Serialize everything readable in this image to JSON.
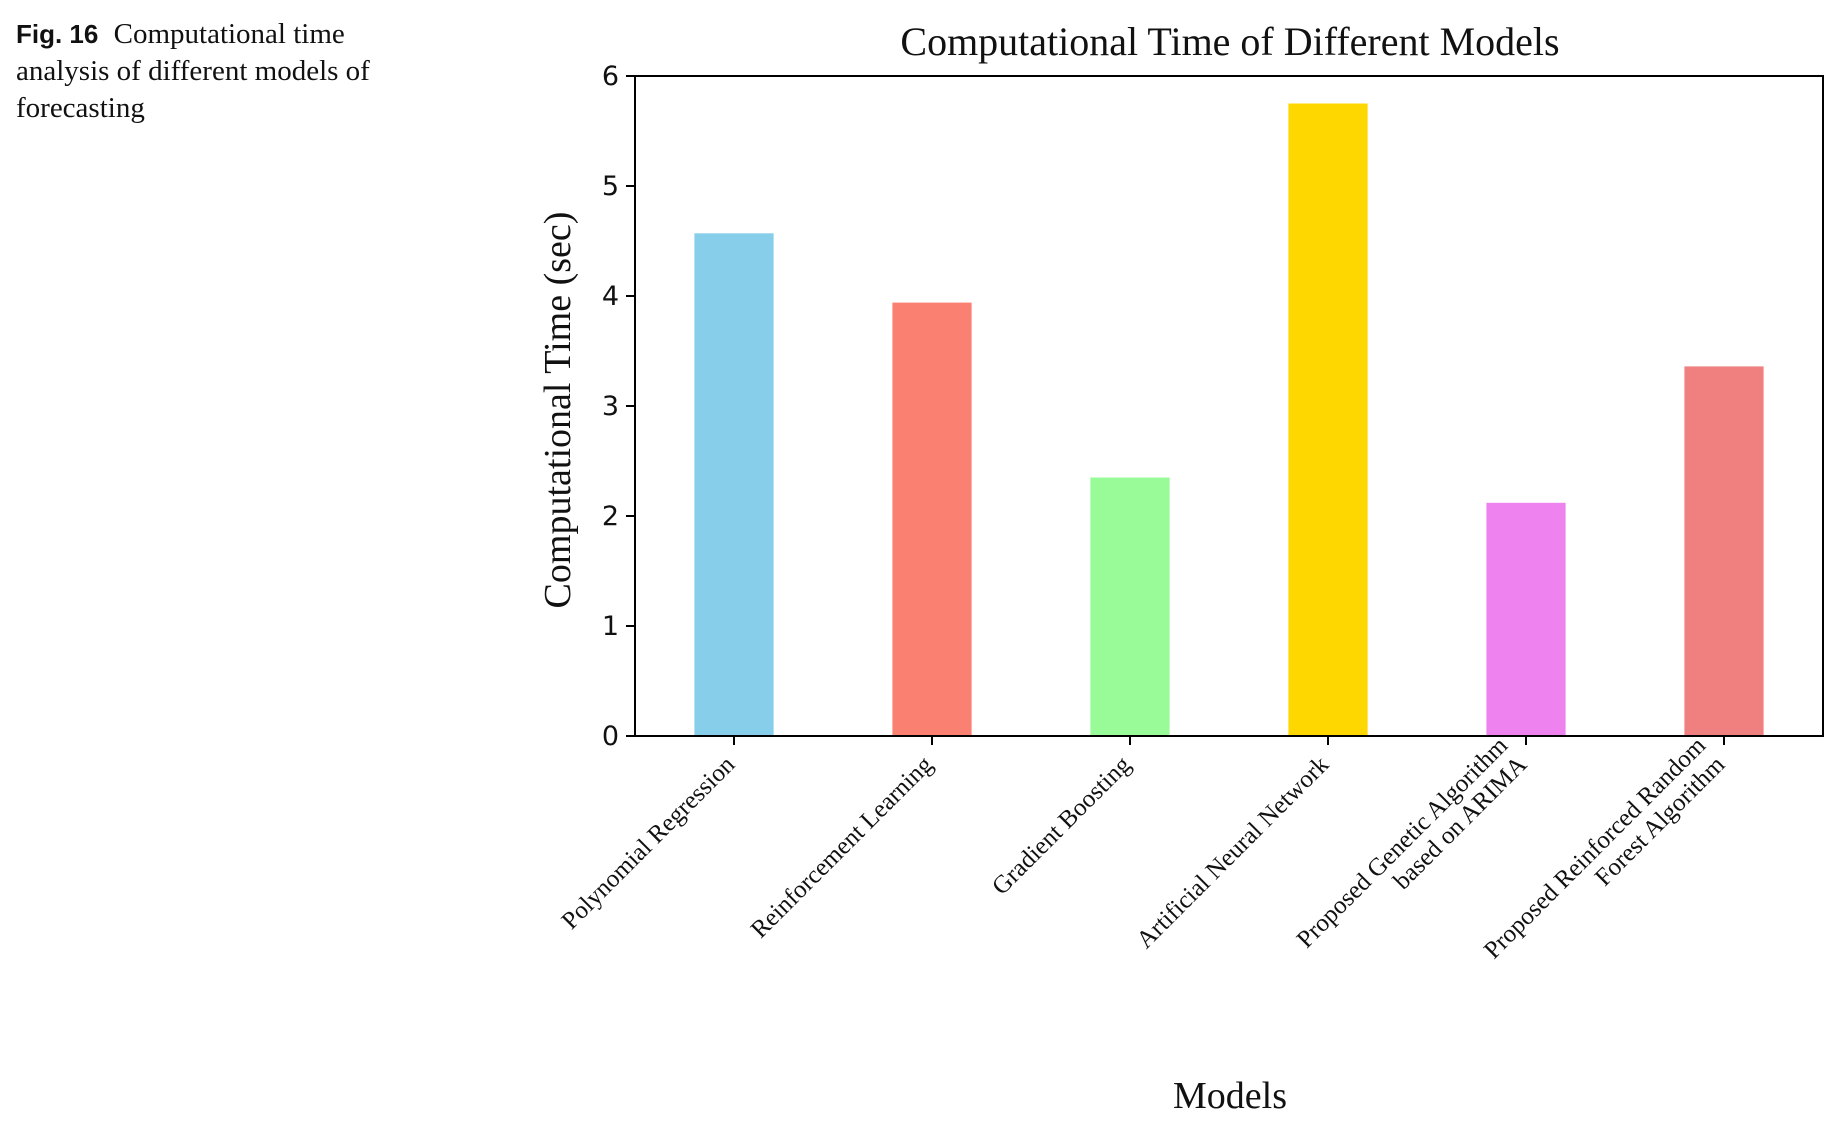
{
  "caption": {
    "fig_label": "Fig. 16",
    "text": "Computational time analysis of different models of forecasting"
  },
  "chart_data": {
    "type": "bar",
    "title": "Computational Time of Different Models",
    "xlabel": "Models",
    "ylabel": "Computational Time (sec)",
    "ylim": [
      0,
      6
    ],
    "yticks": [
      0,
      1,
      2,
      3,
      4,
      5,
      6
    ],
    "grid": false,
    "categories": [
      [
        "Polynomial Regression"
      ],
      [
        "Reinforcement Learning"
      ],
      [
        "Gradient Boosting"
      ],
      [
        "Artificial Neural Network"
      ],
      [
        "Proposed Genetic Algorithm",
        "based on ARIMA"
      ],
      [
        "Proposed Reinforced Random",
        "Forest Algorithm"
      ]
    ],
    "values": [
      4.57,
      3.94,
      2.35,
      5.75,
      2.12,
      3.36
    ],
    "colors": [
      "#87CEEB",
      "#FA8072",
      "#98FB98",
      "#FFD700",
      "#EE82EE",
      "#F08080"
    ]
  }
}
